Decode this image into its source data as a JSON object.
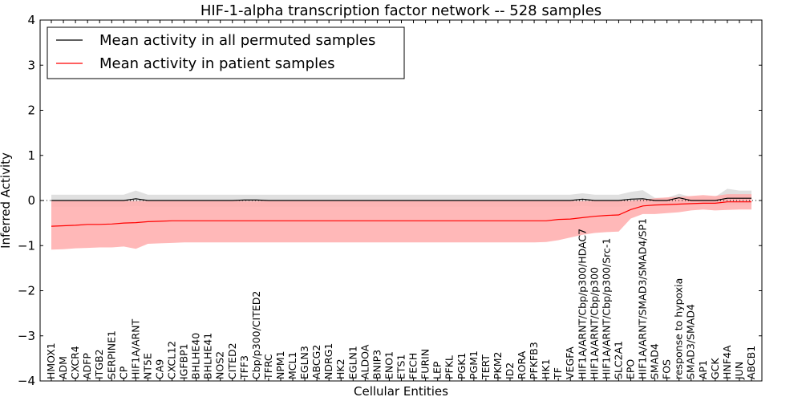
{
  "chart_data": {
    "type": "line",
    "title": "HIF-1-alpha transcription factor network -- 528 samples",
    "xlabel": "Cellular Entities",
    "ylabel": "Inferred Activity",
    "ylim": [
      -4,
      4
    ],
    "yticks": [
      -4,
      -3,
      -2,
      -1,
      0,
      1,
      2,
      3,
      4
    ],
    "grid": false,
    "legend_position": "top-left",
    "zero_line": "dotted",
    "categories": [
      "HMOX1",
      "ADM",
      "CXCR4",
      "ADFP",
      "ITGB2",
      "SERPINE1",
      "CP",
      "HIF1A/ARNT",
      "NT5E",
      "CA9",
      "CXCL12",
      "IGFBP1",
      "BHLHE40",
      "BHLHE41",
      "NOS2",
      "CITED2",
      "TFF3",
      "Cbp/p300/CITED2",
      "TFRC",
      "NPM1",
      "MCL1",
      "EGLN3",
      "ABCG2",
      "NDRG1",
      "HK2",
      "EGLN1",
      "ALDOA",
      "BNIP3",
      "ENO1",
      "ETS1",
      "FECH",
      "FURIN",
      "LEP",
      "PFKL",
      "PGK1",
      "PGM1",
      "TERT",
      "PKM2",
      "ID2",
      "RORA",
      "PFKFB3",
      "HK1",
      "TF",
      "VEGFA",
      "HIF1A/ARNT/Cbp/p300/HDAC7",
      "HIF1A/ARNT/Cbp/p300",
      "HIF1A/ARNT/Cbp/p300/Src-1",
      "SLC2A1",
      "EPO",
      "HIF1A/ARNT/SMAD3/SMAD4/SP1",
      "SMAD4",
      "FOS",
      "response to hypoxia",
      "SMAD3/SMAD4",
      "AP1",
      "GCK",
      "HNF4A",
      "JUN",
      "ABCB1"
    ],
    "series": [
      {
        "name": "Mean activity in all permuted samples",
        "color": "#000000",
        "band_color": "#bbbbbb",
        "values": [
          0.0,
          0.0,
          0.0,
          0.0,
          0.0,
          0.0,
          0.0,
          0.04,
          0.0,
          0.0,
          0.0,
          0.0,
          0.0,
          0.0,
          0.0,
          0.0,
          0.01,
          0.01,
          0.0,
          0.0,
          0.0,
          0.0,
          0.0,
          0.0,
          0.0,
          0.0,
          0.0,
          0.0,
          0.0,
          0.0,
          0.0,
          0.0,
          0.0,
          0.0,
          0.0,
          0.0,
          0.0,
          0.0,
          0.0,
          0.0,
          0.0,
          0.0,
          0.0,
          0.0,
          0.03,
          0.0,
          0.0,
          0.0,
          0.03,
          0.04,
          0.0,
          0.0,
          0.06,
          0.0,
          0.0,
          0.0,
          0.05,
          0.05,
          0.05
        ],
        "lower": [
          -0.14,
          -0.14,
          -0.14,
          -0.14,
          -0.14,
          -0.14,
          -0.14,
          -0.12,
          -0.14,
          -0.14,
          -0.14,
          -0.14,
          -0.14,
          -0.14,
          -0.14,
          -0.14,
          -0.14,
          -0.14,
          -0.14,
          -0.14,
          -0.14,
          -0.14,
          -0.14,
          -0.14,
          -0.14,
          -0.14,
          -0.14,
          -0.14,
          -0.14,
          -0.14,
          -0.14,
          -0.14,
          -0.14,
          -0.14,
          -0.14,
          -0.14,
          -0.14,
          -0.14,
          -0.14,
          -0.14,
          -0.14,
          -0.14,
          -0.14,
          -0.14,
          -0.12,
          -0.14,
          -0.14,
          -0.14,
          -0.12,
          -0.12,
          -0.12,
          -0.12,
          -0.1,
          -0.1,
          -0.1,
          -0.1,
          -0.1,
          -0.1,
          -0.1
        ],
        "upper": [
          0.13,
          0.13,
          0.13,
          0.13,
          0.13,
          0.13,
          0.13,
          0.22,
          0.13,
          0.13,
          0.13,
          0.13,
          0.13,
          0.13,
          0.13,
          0.13,
          0.13,
          0.13,
          0.13,
          0.13,
          0.13,
          0.13,
          0.13,
          0.13,
          0.13,
          0.13,
          0.13,
          0.13,
          0.13,
          0.13,
          0.13,
          0.13,
          0.13,
          0.13,
          0.13,
          0.13,
          0.13,
          0.13,
          0.13,
          0.13,
          0.13,
          0.13,
          0.13,
          0.13,
          0.16,
          0.13,
          0.13,
          0.13,
          0.19,
          0.23,
          0.06,
          0.06,
          0.15,
          0.08,
          0.08,
          0.08,
          0.26,
          0.22,
          0.22
        ]
      },
      {
        "name": "Mean activity in patient samples",
        "color": "#ff0000",
        "band_color": "#ffb0b0",
        "values": [
          -0.57,
          -0.56,
          -0.55,
          -0.53,
          -0.53,
          -0.52,
          -0.5,
          -0.49,
          -0.47,
          -0.46,
          -0.45,
          -0.45,
          -0.45,
          -0.45,
          -0.45,
          -0.45,
          -0.45,
          -0.45,
          -0.45,
          -0.45,
          -0.45,
          -0.45,
          -0.45,
          -0.45,
          -0.45,
          -0.45,
          -0.45,
          -0.45,
          -0.45,
          -0.45,
          -0.45,
          -0.45,
          -0.45,
          -0.45,
          -0.45,
          -0.45,
          -0.45,
          -0.45,
          -0.45,
          -0.45,
          -0.45,
          -0.45,
          -0.42,
          -0.41,
          -0.38,
          -0.35,
          -0.33,
          -0.32,
          -0.2,
          -0.12,
          -0.1,
          -0.09,
          -0.08,
          -0.07,
          -0.06,
          -0.06,
          -0.03,
          -0.03,
          -0.03
        ],
        "lower": [
          -1.09,
          -1.08,
          -1.06,
          -1.05,
          -1.04,
          -1.04,
          -1.02,
          -1.07,
          -0.96,
          -0.95,
          -0.94,
          -0.93,
          -0.93,
          -0.93,
          -0.93,
          -0.93,
          -0.93,
          -0.93,
          -0.93,
          -0.93,
          -0.93,
          -0.93,
          -0.93,
          -0.93,
          -0.93,
          -0.93,
          -0.93,
          -0.93,
          -0.93,
          -0.93,
          -0.93,
          -0.93,
          -0.93,
          -0.93,
          -0.93,
          -0.93,
          -0.93,
          -0.93,
          -0.93,
          -0.93,
          -0.93,
          -0.92,
          -0.88,
          -0.82,
          -0.76,
          -0.72,
          -0.7,
          -0.69,
          -0.4,
          -0.3,
          -0.3,
          -0.28,
          -0.26,
          -0.22,
          -0.2,
          -0.22,
          -0.21,
          -0.2,
          -0.2
        ],
        "upper": [
          -0.01,
          -0.01,
          -0.01,
          -0.01,
          -0.01,
          -0.01,
          -0.01,
          -0.01,
          -0.01,
          -0.01,
          -0.01,
          -0.01,
          -0.01,
          -0.01,
          -0.01,
          -0.01,
          -0.01,
          -0.01,
          -0.01,
          -0.01,
          -0.01,
          -0.01,
          -0.01,
          -0.01,
          -0.01,
          -0.01,
          -0.01,
          -0.01,
          -0.01,
          -0.01,
          -0.01,
          -0.01,
          -0.01,
          -0.01,
          -0.01,
          -0.01,
          -0.01,
          -0.01,
          -0.01,
          -0.01,
          -0.01,
          -0.01,
          -0.01,
          -0.01,
          -0.01,
          -0.01,
          -0.01,
          -0.01,
          0.0,
          0.02,
          0.05,
          0.07,
          0.08,
          0.1,
          0.12,
          0.1,
          0.14,
          0.14,
          0.14
        ]
      }
    ]
  }
}
